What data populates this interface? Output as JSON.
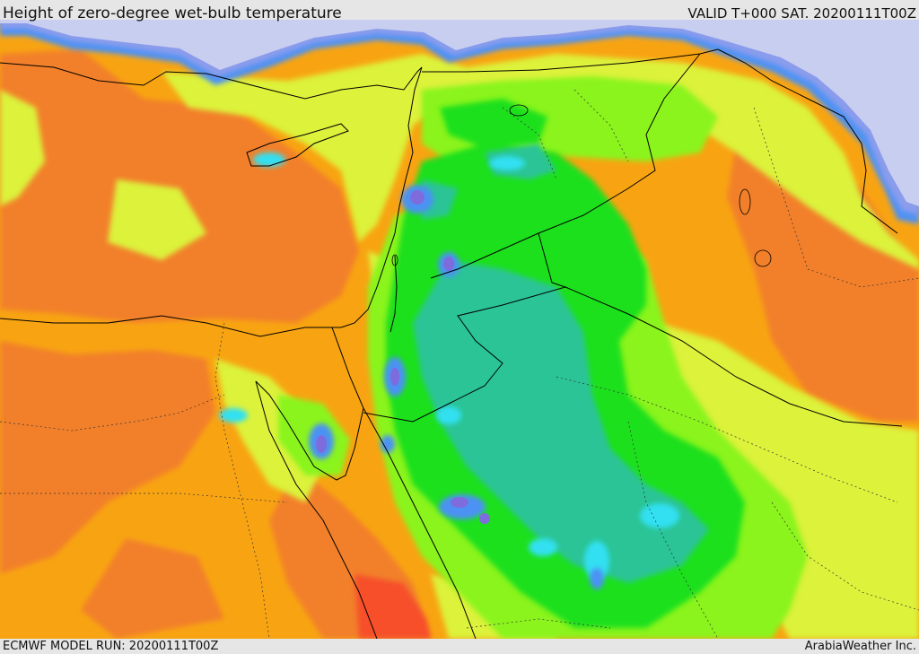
{
  "header": {
    "title": "Height of zero-degree wet-bulb temperature",
    "valid": "VALID T+000 SAT. 20200111T00Z"
  },
  "footer": {
    "model_run": "ECMWF MODEL RUN: 20200111T00Z",
    "credit": "ArabiaWeather Inc."
  },
  "map": {
    "color_levels": {
      "lowest": "#c8cef0",
      "very_low": "#8c9cec",
      "low_violet": "#7e6cdc",
      "low_blue": "#4c92f4",
      "cyan": "#30e0f2",
      "teal": "#2cc496",
      "green": "#1ee01e",
      "light_green": "#8af41c",
      "yellow_green": "#dcf23a",
      "light_orange": "#f6b41c",
      "orange": "#f8a412",
      "dark_orange": "#f2802c",
      "red_orange": "#f6502a"
    },
    "boundary_color": "#000000"
  }
}
